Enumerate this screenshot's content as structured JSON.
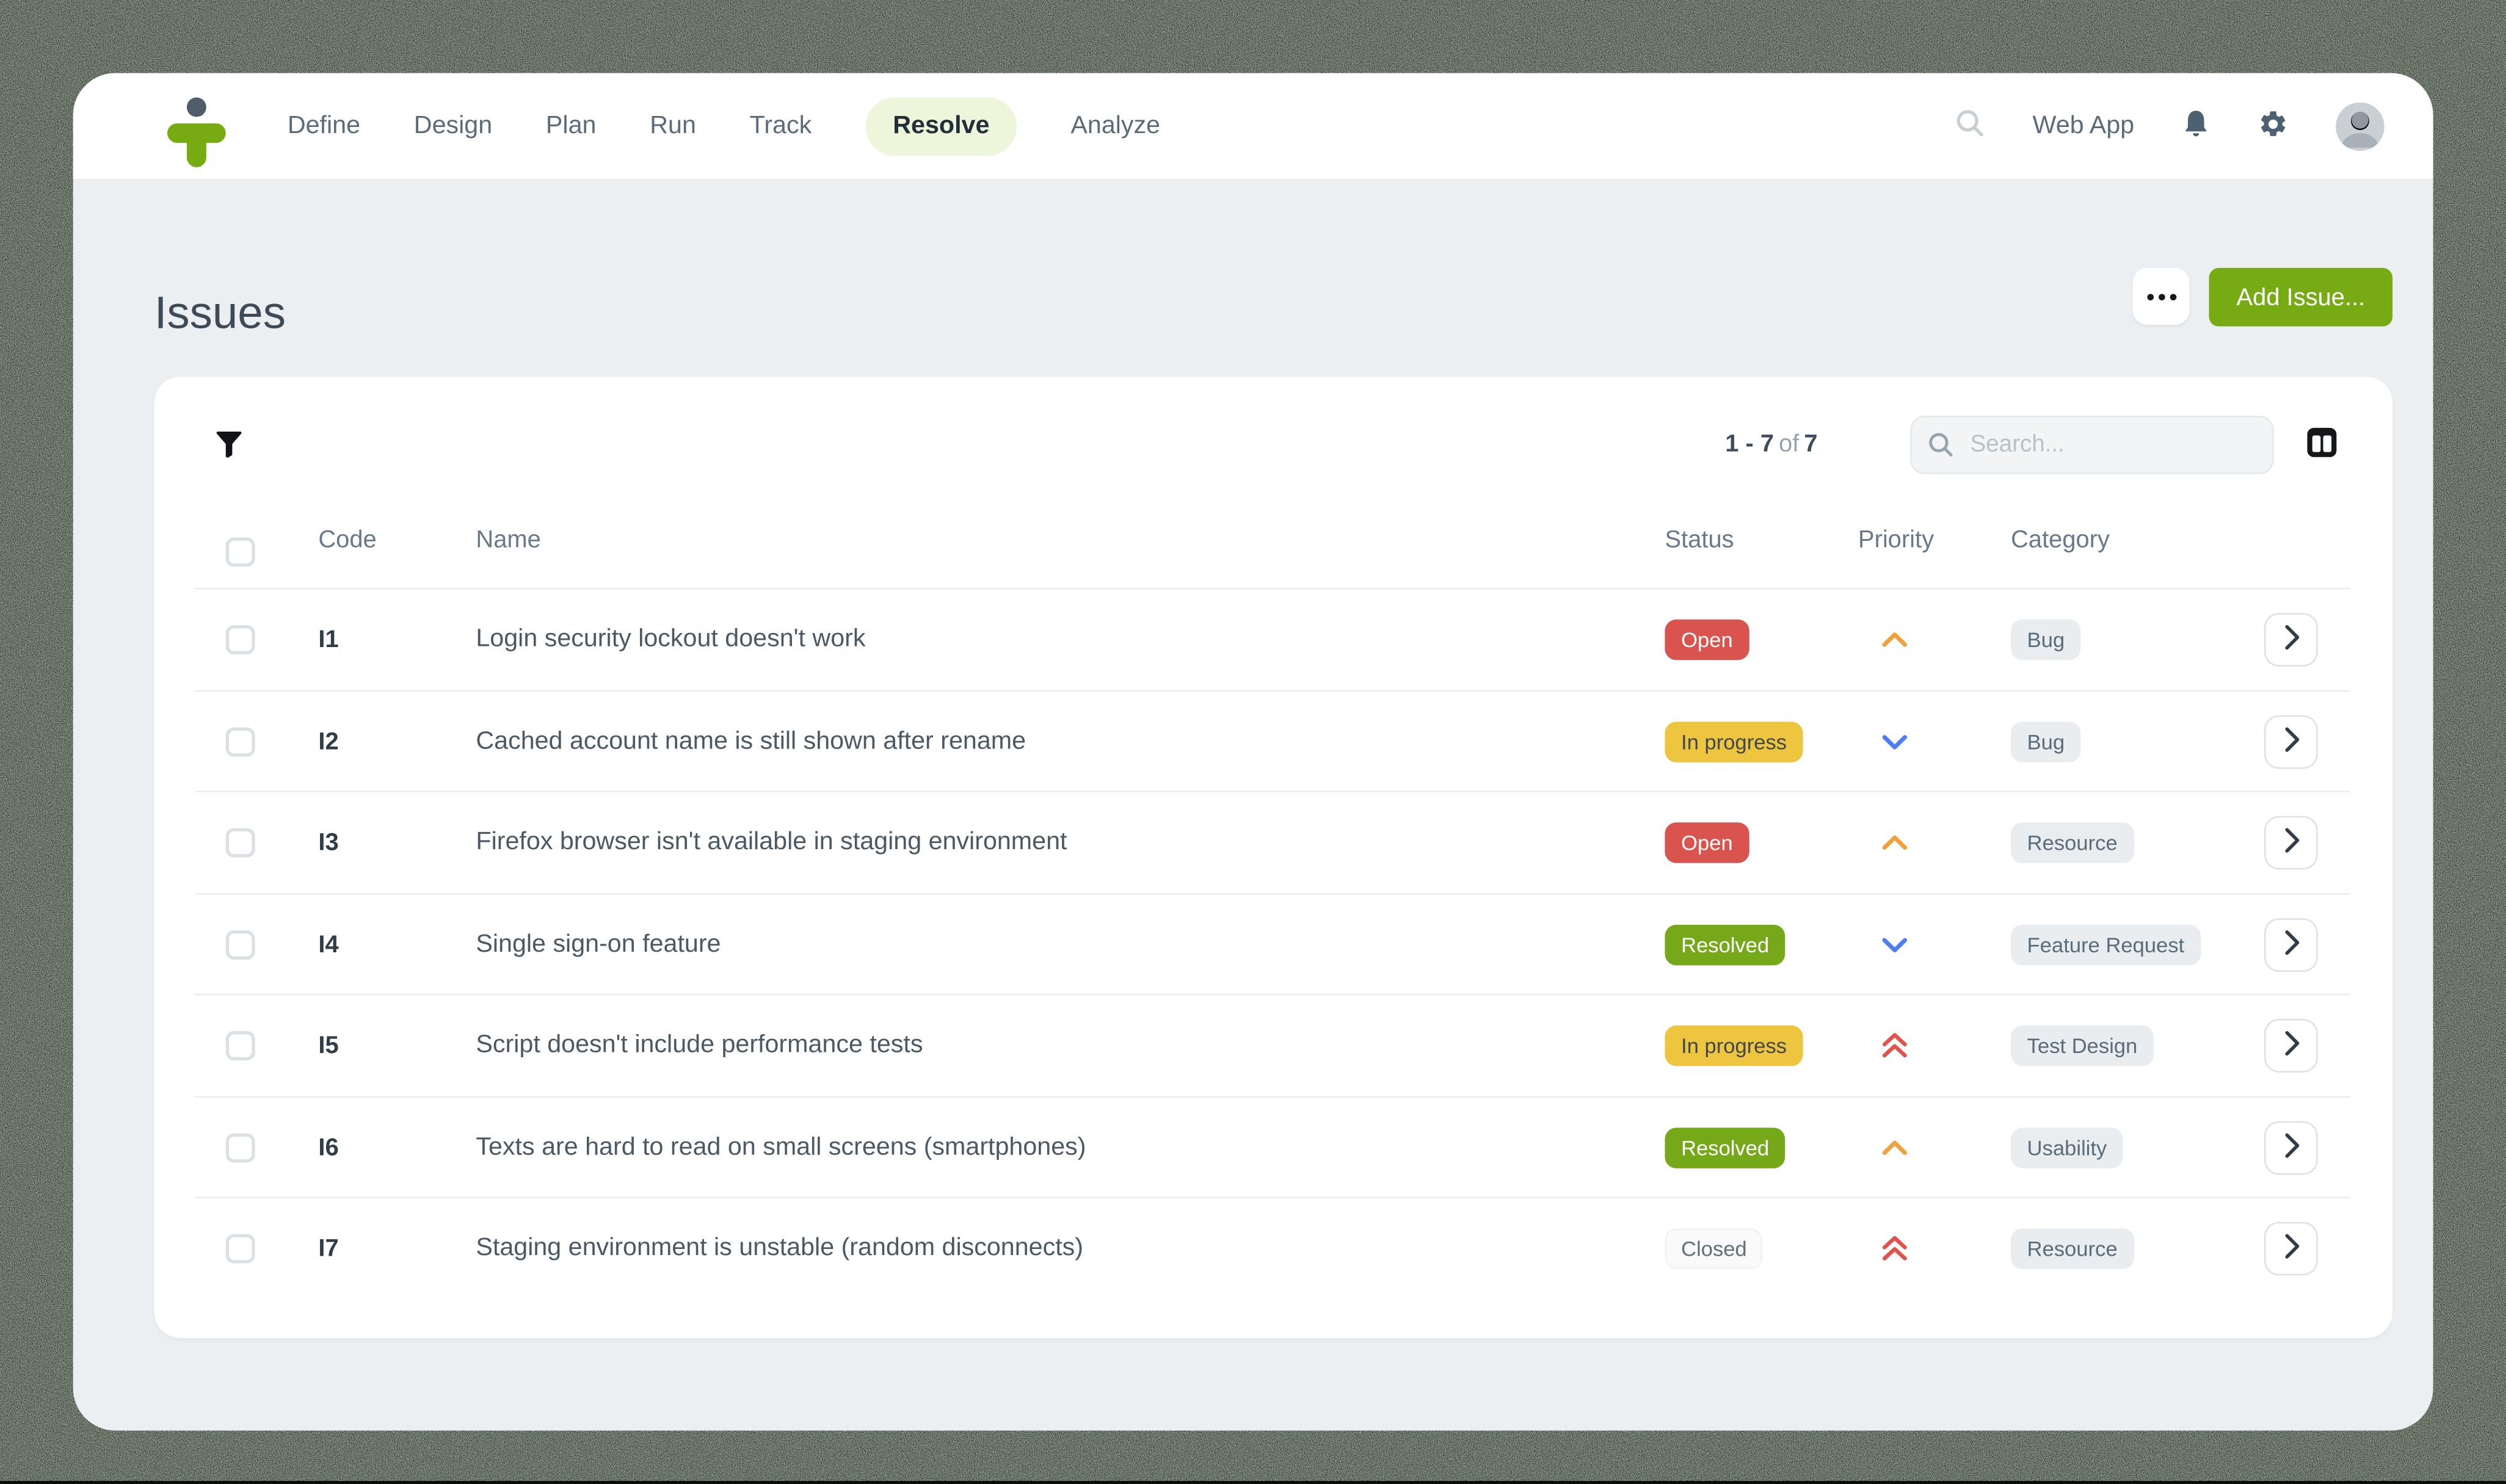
{
  "topnav": {
    "items": [
      {
        "label": "Define",
        "active": false
      },
      {
        "label": "Design",
        "active": false
      },
      {
        "label": "Plan",
        "active": false
      },
      {
        "label": "Run",
        "active": false
      },
      {
        "label": "Track",
        "active": false
      },
      {
        "label": "Resolve",
        "active": true
      },
      {
        "label": "Analyze",
        "active": false
      }
    ],
    "right": {
      "app_label": "Web App"
    }
  },
  "page": {
    "title": "Issues",
    "more_label": "...",
    "add_button_label": "Add Issue..."
  },
  "toolbar": {
    "count_range": "1 - 7",
    "count_of": "of",
    "count_total": "7",
    "search_placeholder": "Search..."
  },
  "table": {
    "headers": {
      "code": "Code",
      "name": "Name",
      "status": "Status",
      "priority": "Priority",
      "category": "Category"
    },
    "rows": [
      {
        "code": "I1",
        "name": "Login security lockout doesn't work",
        "status": {
          "label": "Open",
          "key": "open"
        },
        "priority_icon": "chevron-up-orange",
        "category": "Bug"
      },
      {
        "code": "I2",
        "name": "Cached account name is still shown after rename",
        "status": {
          "label": "In progress",
          "key": "in-progress"
        },
        "priority_icon": "chevron-down-blue",
        "category": "Bug"
      },
      {
        "code": "I3",
        "name": "Firefox browser isn't available in staging environment",
        "status": {
          "label": "Open",
          "key": "open"
        },
        "priority_icon": "chevron-up-orange",
        "category": "Resource"
      },
      {
        "code": "I4",
        "name": "Single sign-on feature",
        "status": {
          "label": "Resolved",
          "key": "resolved"
        },
        "priority_icon": "chevron-down-blue",
        "category": "Feature Request"
      },
      {
        "code": "I5",
        "name": "Script doesn't include performance tests",
        "status": {
          "label": "In progress",
          "key": "in-progress"
        },
        "priority_icon": "double-chevron-up-red",
        "category": "Test Design"
      },
      {
        "code": "I6",
        "name": "Texts are hard to read on small screens (smartphones)",
        "status": {
          "label": "Resolved",
          "key": "resolved"
        },
        "priority_icon": "chevron-up-orange",
        "category": "Usability"
      },
      {
        "code": "I7",
        "name": "Staging environment is unstable (random disconnects)",
        "status": {
          "label": "Closed",
          "key": "closed"
        },
        "priority_icon": "double-chevron-up-red",
        "category": "Resource"
      }
    ]
  },
  "icons": {
    "logo": "testiny-person-logo",
    "topbar": [
      "search-icon",
      "bell-icon",
      "gear-icon",
      "avatar"
    ],
    "toolbar": [
      "filter-icon",
      "search-icon",
      "columns-icon"
    ],
    "row": [
      "checkbox",
      "priority-icon",
      "chevron-right-icon"
    ]
  },
  "colors": {
    "brand_green": "#76AB14",
    "active_tab_bg": "#EDF5DB",
    "status_open": "#D9534F",
    "status_in_progress": "#EDC53F",
    "status_resolved": "#76A919",
    "status_closed_bg": "#FAFAFA",
    "category_badge_bg": "#E9EDF0",
    "priority_orange": "#F0A13C",
    "priority_blue": "#4D7EF7",
    "priority_red": "#E0524A",
    "content_bg": "#ECEFF1",
    "text_slate": "#4A5964"
  }
}
